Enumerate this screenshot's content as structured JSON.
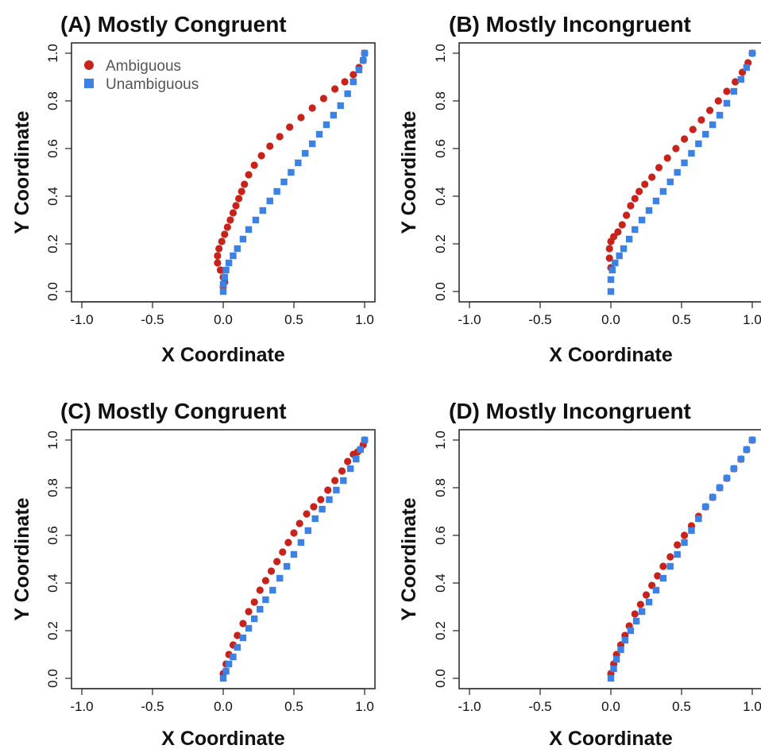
{
  "colors": {
    "ambiguous": "#c8231a",
    "unambiguous": "#3b82e4"
  },
  "legend": [
    "Ambiguous",
    "Unambiguous"
  ],
  "chart_data": [
    {
      "type": "scatter",
      "title": "(A) Mostly Congruent",
      "xlabel": "X Coordinate",
      "ylabel": "Y Coordinate",
      "xlim": [
        -1.0,
        1.0
      ],
      "ylim": [
        0.0,
        1.0
      ],
      "xticks": [
        "-1.0",
        "-0.5",
        "0.0",
        "0.5",
        "1.0"
      ],
      "yticks": [
        "0.0",
        "0.2",
        "0.4",
        "0.6",
        "0.8",
        "1.0"
      ],
      "legend_position": "top-left",
      "series": [
        {
          "name": "Ambiguous",
          "marker": "circle",
          "color": "#c8231a",
          "x": [
            0.0,
            0.01,
            0.0,
            -0.02,
            -0.04,
            -0.04,
            -0.03,
            -0.01,
            0.01,
            0.03,
            0.05,
            0.07,
            0.09,
            0.11,
            0.13,
            0.15,
            0.18,
            0.22,
            0.27,
            0.33,
            0.4,
            0.47,
            0.55,
            0.63,
            0.71,
            0.79,
            0.86,
            0.92,
            0.96,
            0.99,
            1.0
          ],
          "y": [
            0.02,
            0.04,
            0.06,
            0.09,
            0.12,
            0.15,
            0.18,
            0.21,
            0.24,
            0.27,
            0.3,
            0.33,
            0.36,
            0.39,
            0.42,
            0.45,
            0.49,
            0.53,
            0.57,
            0.61,
            0.65,
            0.69,
            0.73,
            0.77,
            0.81,
            0.85,
            0.88,
            0.91,
            0.94,
            0.97,
            1.0
          ]
        },
        {
          "name": "Unambiguous",
          "marker": "square",
          "color": "#3b82e4",
          "x": [
            0.0,
            0.0,
            0.01,
            0.02,
            0.04,
            0.07,
            0.1,
            0.14,
            0.18,
            0.23,
            0.28,
            0.33,
            0.38,
            0.43,
            0.48,
            0.53,
            0.58,
            0.63,
            0.68,
            0.73,
            0.78,
            0.83,
            0.88,
            0.92,
            0.96,
            0.99,
            1.0
          ],
          "y": [
            0.0,
            0.03,
            0.06,
            0.09,
            0.12,
            0.15,
            0.18,
            0.22,
            0.26,
            0.3,
            0.34,
            0.38,
            0.42,
            0.46,
            0.5,
            0.54,
            0.58,
            0.62,
            0.66,
            0.7,
            0.74,
            0.78,
            0.83,
            0.88,
            0.93,
            0.97,
            1.0
          ]
        }
      ]
    },
    {
      "type": "scatter",
      "title": "(B) Mostly Incongruent",
      "xlabel": "X Coordinate",
      "ylabel": "Y Coordinate",
      "xlim": [
        -1.0,
        1.0
      ],
      "ylim": [
        0.0,
        1.0
      ],
      "xticks": [
        "-1.0",
        "-0.5",
        "0.0",
        "0.5",
        "1.0"
      ],
      "yticks": [
        "0.0",
        "0.2",
        "0.4",
        "0.6",
        "0.8",
        "1.0"
      ],
      "series": [
        {
          "name": "Ambiguous",
          "marker": "circle",
          "color": "#c8231a",
          "x": [
            0.0,
            -0.01,
            -0.01,
            0.0,
            0.02,
            0.05,
            0.08,
            0.11,
            0.14,
            0.17,
            0.2,
            0.24,
            0.29,
            0.34,
            0.4,
            0.46,
            0.52,
            0.58,
            0.64,
            0.7,
            0.76,
            0.82,
            0.88,
            0.93,
            0.97,
            1.0
          ],
          "y": [
            0.1,
            0.14,
            0.18,
            0.21,
            0.23,
            0.25,
            0.28,
            0.32,
            0.36,
            0.39,
            0.42,
            0.45,
            0.48,
            0.52,
            0.56,
            0.6,
            0.64,
            0.68,
            0.72,
            0.76,
            0.8,
            0.84,
            0.88,
            0.92,
            0.96,
            1.0
          ]
        },
        {
          "name": "Unambiguous",
          "marker": "square",
          "color": "#3b82e4",
          "x": [
            0.0,
            0.0,
            0.01,
            0.03,
            0.06,
            0.09,
            0.13,
            0.17,
            0.22,
            0.27,
            0.32,
            0.37,
            0.42,
            0.47,
            0.52,
            0.57,
            0.62,
            0.67,
            0.72,
            0.77,
            0.82,
            0.87,
            0.92,
            0.96,
            1.0
          ],
          "y": [
            0.0,
            0.05,
            0.09,
            0.12,
            0.15,
            0.18,
            0.22,
            0.26,
            0.3,
            0.34,
            0.38,
            0.42,
            0.46,
            0.5,
            0.54,
            0.58,
            0.62,
            0.66,
            0.7,
            0.74,
            0.79,
            0.84,
            0.89,
            0.94,
            1.0
          ]
        }
      ]
    },
    {
      "type": "scatter",
      "title": "(C) Mostly Congruent",
      "xlabel": "X Coordinate",
      "ylabel": "Y Coordinate",
      "xlim": [
        -1.0,
        1.0
      ],
      "ylim": [
        0.0,
        1.0
      ],
      "xticks": [
        "-1.0",
        "-0.5",
        "0.0",
        "0.5",
        "1.0"
      ],
      "yticks": [
        "0.0",
        "0.2",
        "0.4",
        "0.6",
        "0.8",
        "1.0"
      ],
      "series": [
        {
          "name": "Ambiguous",
          "marker": "circle",
          "color": "#c8231a",
          "x": [
            0.0,
            0.02,
            0.04,
            0.07,
            0.1,
            0.14,
            0.18,
            0.22,
            0.26,
            0.3,
            0.34,
            0.38,
            0.42,
            0.46,
            0.5,
            0.54,
            0.59,
            0.64,
            0.69,
            0.74,
            0.79,
            0.84,
            0.88,
            0.92,
            0.95,
            0.97,
            0.99,
            1.0
          ],
          "y": [
            0.02,
            0.06,
            0.1,
            0.14,
            0.18,
            0.23,
            0.28,
            0.32,
            0.37,
            0.41,
            0.45,
            0.49,
            0.53,
            0.57,
            0.61,
            0.65,
            0.69,
            0.72,
            0.75,
            0.79,
            0.83,
            0.87,
            0.91,
            0.94,
            0.95,
            0.96,
            0.98,
            1.0
          ]
        },
        {
          "name": "Unambiguous",
          "marker": "square",
          "color": "#3b82e4",
          "x": [
            0.0,
            0.02,
            0.04,
            0.07,
            0.1,
            0.14,
            0.18,
            0.22,
            0.26,
            0.3,
            0.35,
            0.4,
            0.45,
            0.5,
            0.55,
            0.6,
            0.65,
            0.7,
            0.75,
            0.8,
            0.85,
            0.9,
            0.94,
            0.97,
            1.0
          ],
          "y": [
            0.0,
            0.03,
            0.06,
            0.09,
            0.13,
            0.17,
            0.21,
            0.25,
            0.29,
            0.33,
            0.37,
            0.42,
            0.47,
            0.52,
            0.57,
            0.62,
            0.67,
            0.71,
            0.75,
            0.79,
            0.83,
            0.88,
            0.92,
            0.96,
            1.0
          ]
        }
      ]
    },
    {
      "type": "scatter",
      "title": "(D) Mostly Incongruent",
      "xlabel": "X Coordinate",
      "ylabel": "Y Coordinate",
      "xlim": [
        -1.0,
        1.0
      ],
      "ylim": [
        0.0,
        1.0
      ],
      "xticks": [
        "-1.0",
        "-0.5",
        "0.0",
        "0.5",
        "1.0"
      ],
      "yticks": [
        "0.0",
        "0.2",
        "0.4",
        "0.6",
        "0.8",
        "1.0"
      ],
      "series": [
        {
          "name": "Ambiguous",
          "marker": "circle",
          "color": "#c8231a",
          "x": [
            0.0,
            0.02,
            0.04,
            0.07,
            0.1,
            0.13,
            0.17,
            0.21,
            0.25,
            0.29,
            0.33,
            0.37,
            0.42,
            0.47,
            0.52,
            0.57,
            0.62,
            0.67,
            0.72,
            0.77,
            0.82,
            0.87,
            0.92,
            0.96,
            1.0
          ],
          "y": [
            0.02,
            0.06,
            0.1,
            0.14,
            0.18,
            0.22,
            0.27,
            0.31,
            0.35,
            0.39,
            0.43,
            0.47,
            0.51,
            0.56,
            0.6,
            0.64,
            0.68,
            0.72,
            0.76,
            0.8,
            0.84,
            0.88,
            0.92,
            0.96,
            1.0
          ]
        },
        {
          "name": "Unambiguous",
          "marker": "square",
          "color": "#3b82e4",
          "x": [
            0.0,
            0.02,
            0.04,
            0.07,
            0.1,
            0.14,
            0.18,
            0.22,
            0.27,
            0.32,
            0.37,
            0.42,
            0.47,
            0.52,
            0.57,
            0.62,
            0.67,
            0.72,
            0.77,
            0.82,
            0.87,
            0.92,
            0.96,
            1.0
          ],
          "y": [
            0.0,
            0.04,
            0.08,
            0.12,
            0.16,
            0.2,
            0.24,
            0.28,
            0.32,
            0.37,
            0.42,
            0.47,
            0.52,
            0.57,
            0.62,
            0.67,
            0.72,
            0.76,
            0.8,
            0.84,
            0.88,
            0.92,
            0.96,
            1.0
          ]
        }
      ]
    }
  ]
}
